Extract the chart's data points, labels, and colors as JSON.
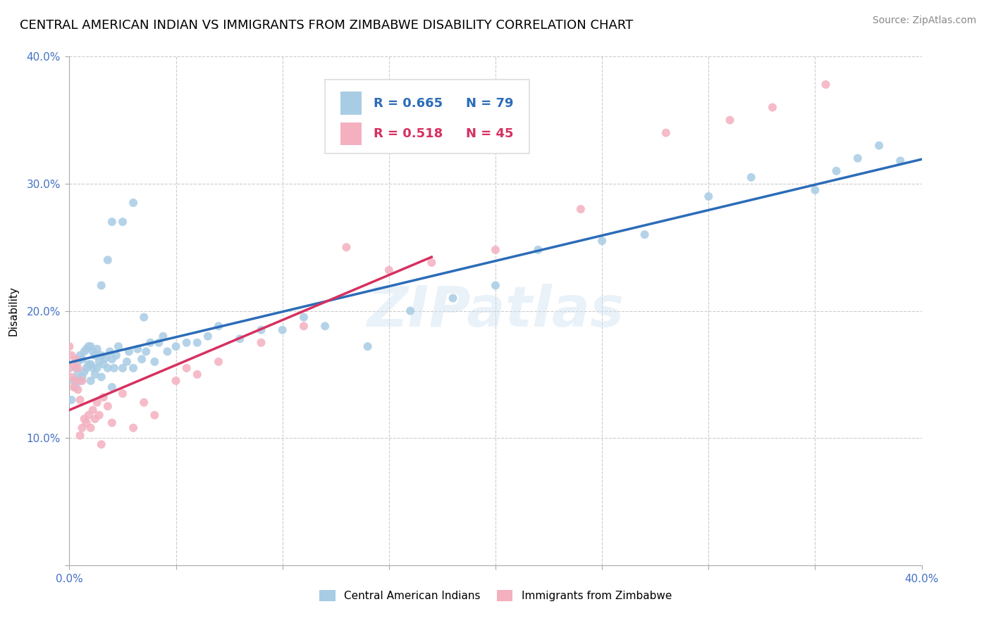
{
  "title": "CENTRAL AMERICAN INDIAN VS IMMIGRANTS FROM ZIMBABWE DISABILITY CORRELATION CHART",
  "source_text": "Source: ZipAtlas.com",
  "ylabel": "Disability",
  "xlabel": "",
  "xlim": [
    0.0,
    0.4
  ],
  "ylim": [
    0.0,
    0.4
  ],
  "xticks": [
    0.0,
    0.05,
    0.1,
    0.15,
    0.2,
    0.25,
    0.3,
    0.35,
    0.4
  ],
  "yticks": [
    0.0,
    0.1,
    0.2,
    0.3,
    0.4
  ],
  "watermark": "ZIPatlas",
  "blue_color": "#a8cce4",
  "pink_color": "#f4b0bf",
  "blue_line_color": "#2b6cb8",
  "pink_line_color": "#d63060",
  "R_blue": 0.665,
  "N_blue": 79,
  "R_pink": 0.518,
  "N_pink": 45,
  "title_fontsize": 13,
  "axis_label_fontsize": 11,
  "tick_fontsize": 11,
  "legend_fontsize": 13,
  "blue_scatter_x": [
    0.001,
    0.002,
    0.003,
    0.003,
    0.004,
    0.004,
    0.005,
    0.005,
    0.006,
    0.006,
    0.007,
    0.007,
    0.008,
    0.008,
    0.009,
    0.009,
    0.01,
    0.01,
    0.01,
    0.011,
    0.011,
    0.012,
    0.012,
    0.013,
    0.013,
    0.014,
    0.015,
    0.015,
    0.016,
    0.017,
    0.018,
    0.019,
    0.02,
    0.02,
    0.021,
    0.022,
    0.023,
    0.025,
    0.027,
    0.028,
    0.03,
    0.032,
    0.034,
    0.036,
    0.038,
    0.04,
    0.042,
    0.044,
    0.046,
    0.05,
    0.055,
    0.06,
    0.065,
    0.07,
    0.08,
    0.09,
    0.1,
    0.11,
    0.12,
    0.14,
    0.16,
    0.18,
    0.2,
    0.22,
    0.25,
    0.27,
    0.3,
    0.32,
    0.35,
    0.36,
    0.37,
    0.38,
    0.39,
    0.015,
    0.018,
    0.02,
    0.025,
    0.03,
    0.035
  ],
  "blue_scatter_y": [
    0.13,
    0.145,
    0.14,
    0.155,
    0.15,
    0.16,
    0.145,
    0.165,
    0.148,
    0.162,
    0.152,
    0.168,
    0.155,
    0.17,
    0.158,
    0.172,
    0.145,
    0.158,
    0.172,
    0.155,
    0.168,
    0.15,
    0.165,
    0.155,
    0.17,
    0.16,
    0.148,
    0.165,
    0.158,
    0.163,
    0.155,
    0.168,
    0.14,
    0.162,
    0.155,
    0.165,
    0.172,
    0.155,
    0.16,
    0.168,
    0.155,
    0.17,
    0.162,
    0.168,
    0.175,
    0.16,
    0.175,
    0.18,
    0.168,
    0.172,
    0.175,
    0.175,
    0.18,
    0.188,
    0.178,
    0.185,
    0.185,
    0.195,
    0.188,
    0.172,
    0.2,
    0.21,
    0.22,
    0.248,
    0.255,
    0.26,
    0.29,
    0.305,
    0.295,
    0.31,
    0.32,
    0.33,
    0.318,
    0.22,
    0.24,
    0.27,
    0.27,
    0.285,
    0.195
  ],
  "pink_scatter_x": [
    0.0,
    0.0,
    0.001,
    0.001,
    0.002,
    0.002,
    0.003,
    0.003,
    0.004,
    0.004,
    0.005,
    0.005,
    0.006,
    0.006,
    0.007,
    0.008,
    0.009,
    0.01,
    0.011,
    0.012,
    0.013,
    0.014,
    0.015,
    0.016,
    0.018,
    0.02,
    0.025,
    0.03,
    0.035,
    0.04,
    0.05,
    0.055,
    0.06,
    0.07,
    0.09,
    0.11,
    0.13,
    0.15,
    0.17,
    0.2,
    0.24,
    0.28,
    0.31,
    0.33,
    0.355
  ],
  "pink_scatter_y": [
    0.155,
    0.172,
    0.148,
    0.165,
    0.14,
    0.158,
    0.145,
    0.162,
    0.138,
    0.155,
    0.102,
    0.13,
    0.108,
    0.145,
    0.115,
    0.112,
    0.118,
    0.108,
    0.122,
    0.115,
    0.128,
    0.118,
    0.095,
    0.132,
    0.125,
    0.112,
    0.135,
    0.108,
    0.128,
    0.118,
    0.145,
    0.155,
    0.15,
    0.16,
    0.175,
    0.188,
    0.25,
    0.232,
    0.238,
    0.248,
    0.28,
    0.34,
    0.35,
    0.36,
    0.378
  ]
}
